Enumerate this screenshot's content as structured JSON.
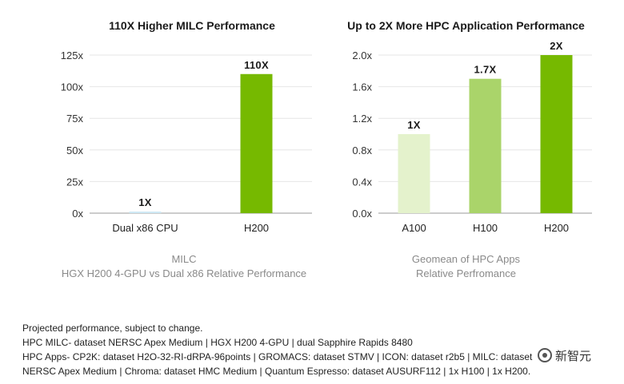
{
  "chart_data": [
    {
      "type": "bar",
      "title": "110X Higher MILC Performance",
      "categories": [
        "Dual x86 CPU",
        "H200"
      ],
      "values": [
        1,
        110
      ],
      "data_labels": [
        "1X",
        "110X"
      ],
      "ylim": [
        0,
        125
      ],
      "yticks": [
        "0x",
        "25x",
        "50x",
        "75x",
        "100x",
        "125x"
      ],
      "colors": [
        "#cfe9f5",
        "#76b900"
      ],
      "caption_line1": "MILC",
      "caption_line2": "HGX H200 4-GPU vs Dual x86 Relative Performance"
    },
    {
      "type": "bar",
      "title": "Up to 2X More HPC Application Performance",
      "categories": [
        "A100",
        "H100",
        "H200"
      ],
      "values": [
        1.0,
        1.7,
        2.0
      ],
      "data_labels": [
        "1X",
        "1.7X",
        "2X"
      ],
      "ylim": [
        0,
        2.0
      ],
      "yticks": [
        "0.0x",
        "0.4x",
        "0.8x",
        "1.2x",
        "1.6x",
        "2.0x"
      ],
      "colors": [
        "#e4f2cc",
        "#aad46a",
        "#76b900"
      ],
      "caption_line1": "Geomean of HPC Apps",
      "caption_line2": "Relative Perfromance"
    }
  ],
  "footnote": {
    "line1": "Projected performance, subject to change.",
    "line2": "HPC MILC- dataset NERSC Apex Medium | HGX H200 4-GPU | dual Sapphire Rapids 8480",
    "line3": "HPC Apps- CP2K: dataset H2O-32-RI-dRPA-96points | GROMACS: dataset STMV | ICON: dataset r2b5 | MILC: dataset",
    "line4": "NERSC Apex Medium | Chroma: dataset HMC Medium | Quantum Espresso: dataset AUSURF112 | 1x H100 | 1x H200."
  },
  "watermark": {
    "text": "新智元",
    "icon": "wechat-logo-icon"
  }
}
